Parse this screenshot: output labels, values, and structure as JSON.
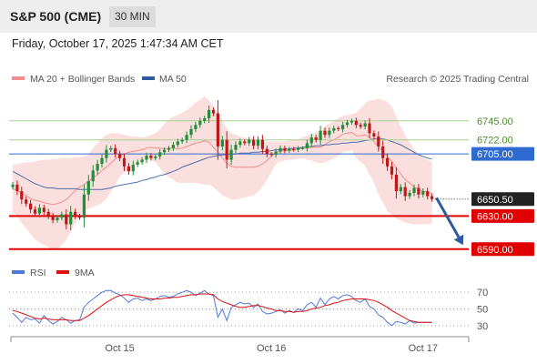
{
  "header": {
    "title": "S&P 500 (CME)",
    "timeframe": "30 MIN"
  },
  "date_label": "Friday, October 17, 2025 1:47:34 AM CET",
  "credit": "Research © 2025 Trading Central",
  "colors": {
    "bollinger": "#f28c8c",
    "ma50": "#2d5aa0",
    "green_level": "#a8d08d",
    "blue_level": "#2f6ad0",
    "red_level": "#e00000",
    "price_tag": "#222222",
    "candle_up": "#1f8f3a",
    "candle_down": "#c01818",
    "rsi": "#4f78d8",
    "rsi_ma": "#e01010",
    "arrow": "#2d5aa0"
  },
  "chart_data": [
    {
      "type": "candlestick",
      "legend": [
        {
          "name": "MA 20 + Bollinger Bands",
          "color": "#f28c8c"
        },
        {
          "name": "MA 50",
          "color": "#2d5aa0"
        }
      ],
      "legend_position": "top-left",
      "x_ticks": [
        {
          "label": "Oct 15",
          "index": 24
        },
        {
          "label": "Oct 16",
          "index": 58
        },
        {
          "label": "Oct 17",
          "index": 92
        }
      ],
      "ylim": [
        6581,
        6781
      ],
      "current_price": {
        "value": 6650.5,
        "label": "6650.50"
      },
      "levels": [
        {
          "value": 6745,
          "label": "6745.00",
          "kind": "resistance-minor"
        },
        {
          "value": 6722,
          "label": "6722.00",
          "kind": "resistance-minor"
        },
        {
          "value": 6705,
          "label": "6705.00",
          "kind": "pivot"
        },
        {
          "value": 6630,
          "label": "6630.00",
          "kind": "support"
        },
        {
          "value": 6590,
          "label": "6590.00",
          "kind": "support"
        }
      ],
      "arrow": {
        "from_index": 95,
        "from_value": 6652,
        "to_index": 101,
        "to_value": 6595
      },
      "closes": [
        6668,
        6660,
        6650,
        6645,
        6638,
        6633,
        6640,
        6635,
        6630,
        6625,
        6628,
        6632,
        6620,
        6635,
        6630,
        6628,
        6656,
        6672,
        6685,
        6693,
        6700,
        6710,
        6712,
        6705,
        6700,
        6690,
        6684,
        6692,
        6695,
        6698,
        6703,
        6700,
        6702,
        6707,
        6710,
        6712,
        6716,
        6720,
        6722,
        6728,
        6735,
        6740,
        6745,
        6748,
        6758,
        6754,
        6714,
        6722,
        6698,
        6710,
        6716,
        6720,
        6718,
        6722,
        6715,
        6722,
        6711,
        6705,
        6704,
        6708,
        6712,
        6709,
        6711,
        6710,
        6712,
        6712,
        6718,
        6725,
        6722,
        6733,
        6728,
        6733,
        6736,
        6735,
        6740,
        6743,
        6745,
        6740,
        6738,
        6742,
        6730,
        6726,
        6714,
        6700,
        6690,
        6680,
        6660,
        6665,
        6654,
        6658,
        6664,
        6656,
        6660,
        6654,
        6650.5
      ],
      "bb_upper": [
        6692,
        6693,
        6694,
        6695,
        6695,
        6696,
        6697,
        6698,
        6698,
        6699,
        6699,
        6700,
        6700,
        6700,
        6701,
        6701,
        6702,
        6705,
        6712,
        6718,
        6724,
        6728,
        6730,
        6730,
        6729,
        6728,
        6727,
        6726,
        6726,
        6725,
        6726,
        6728,
        6730,
        6735,
        6741,
        6747,
        6750,
        6752,
        6755,
        6758,
        6762,
        6767,
        6770,
        6775,
        6770,
        6762,
        6755,
        6745,
        6736,
        6730,
        6728,
        6726,
        6725,
        6724,
        6723,
        6722,
        6721,
        6720,
        6720,
        6720,
        6720,
        6720,
        6721,
        6722,
        6723,
        6725,
        6727,
        6729,
        6731,
        6733,
        6738,
        6742,
        6745,
        6748,
        6751,
        6752,
        6753,
        6755,
        6760,
        6766,
        6770,
        6770,
        6772,
        6770,
        6768,
        6762,
        6750,
        6738,
        6727,
        6719,
        6711,
        6705,
        6700,
        6698,
        6695
      ],
      "bb_lower": [
        6635,
        6630,
        6622,
        6615,
        6608,
        6602,
        6598,
        6595,
        6592,
        6590,
        6590,
        6595,
        6601,
        6611,
        6621,
        6630,
        6635,
        6639,
        6641,
        6643,
        6646,
        6650,
        6659,
        6668,
        6678,
        6682,
        6687,
        6690,
        6693,
        6696,
        6698,
        6698,
        6695,
        6688,
        6681,
        6677,
        6674,
        6670,
        6670,
        6670,
        6670,
        6670,
        6669,
        6668,
        6668,
        6665,
        6660,
        6655,
        6653,
        6650,
        6650,
        6651,
        6652,
        6654,
        6655,
        6659,
        6666,
        6673,
        6683,
        6693,
        6696,
        6697,
        6698,
        6698,
        6699,
        6700,
        6698,
        6697,
        6695,
        6694,
        6695,
        6697,
        6700,
        6703,
        6707,
        6708,
        6709,
        6700,
        6695,
        6691,
        6680,
        6670,
        6656,
        6646,
        6636,
        6631,
        6627,
        6625,
        6622,
        6621,
        6620,
        6620,
        6620,
        6620,
        6620
      ],
      "bb_mid": [
        6663,
        6661,
        6658,
        6655,
        6651,
        6649,
        6648,
        6646,
        6645,
        6644,
        6645,
        6647,
        6650,
        6655,
        6661,
        6665,
        6668,
        6672,
        6676,
        6680,
        6685,
        6689,
        6694,
        6699,
        6703,
        6705,
        6707,
        6708,
        6709,
        6710,
        6712,
        6713,
        6712,
        6712,
        6711,
        6712,
        6712,
        6711,
        6712,
        6714,
        6716,
        6718,
        6719,
        6721,
        6719,
        6713,
        6707,
        6700,
        6694,
        6690,
        6689,
        6689,
        6689,
        6689,
        6689,
        6690,
        6693,
        6697,
        6702,
        6707,
        6708,
        6709,
        6709,
        6710,
        6711,
        6712,
        6712,
        6713,
        6713,
        6713,
        6716,
        6720,
        6722,
        6725,
        6729,
        6730,
        6731,
        6727,
        6727,
        6728,
        6725,
        6720,
        6714,
        6708,
        6702,
        6696,
        6688,
        6681,
        6674,
        6670,
        6665,
        6662,
        6660,
        6659,
        6657
      ],
      "ma50": [
        6684,
        6681,
        6678,
        6675,
        6672,
        6669,
        6667,
        6665,
        6664,
        6664,
        6663,
        6663,
        6663,
        6663,
        6663,
        6662,
        6662,
        6662,
        6662,
        6662,
        6662,
        6663,
        6664,
        6666,
        6667,
        6668,
        6669,
        6670,
        6671,
        6673,
        6674,
        6676,
        6677,
        6679,
        6680,
        6682,
        6684,
        6686,
        6689,
        6691,
        6693,
        6695,
        6697,
        6699,
        6701,
        6702,
        6703,
        6704,
        6704,
        6705,
        6705,
        6706,
        6706,
        6706,
        6707,
        6707,
        6708,
        6708,
        6709,
        6710,
        6710,
        6711,
        6711,
        6712,
        6712,
        6713,
        6714,
        6714,
        6715,
        6715,
        6716,
        6716,
        6717,
        6717,
        6718,
        6718,
        6719,
        6719,
        6720,
        6721,
        6722,
        6723,
        6723,
        6723,
        6722,
        6720,
        6718,
        6716,
        6713,
        6710,
        6707,
        6704,
        6702,
        6700,
        6699
      ]
    },
    {
      "type": "line",
      "legend": [
        {
          "name": "RSI",
          "color": "#4f78d8"
        },
        {
          "name": "9MA",
          "color": "#e01010"
        }
      ],
      "legend_position": "top-left",
      "ylim": [
        20,
        80
      ],
      "y_ticks": [
        {
          "value": 70,
          "label": "70"
        },
        {
          "value": 50,
          "label": "50"
        },
        {
          "value": 30,
          "label": "30"
        }
      ],
      "series": [
        {
          "name": "RSI",
          "values": [
            45,
            40,
            34,
            40,
            37,
            38,
            33,
            42,
            36,
            32,
            35,
            40,
            37,
            33,
            36,
            37,
            52,
            58,
            62,
            66,
            70,
            72,
            72,
            69,
            67,
            63,
            58,
            62,
            63,
            60,
            62,
            60,
            62,
            65,
            66,
            64,
            65,
            68,
            70,
            72,
            70,
            66,
            69,
            72,
            68,
            66,
            40,
            50,
            36,
            52,
            55,
            58,
            56,
            57,
            52,
            56,
            47,
            44,
            45,
            47,
            49,
            45,
            48,
            46,
            50,
            48,
            55,
            58,
            52,
            63,
            55,
            62,
            65,
            62,
            66,
            67,
            65,
            60,
            58,
            62,
            53,
            50,
            43,
            40,
            34,
            30,
            35,
            34,
            32,
            36,
            33,
            34,
            34,
            34,
            34
          ]
        },
        {
          "name": "9MA",
          "values": [
            48,
            47,
            45,
            43,
            41,
            39,
            38,
            39,
            38,
            37,
            37,
            37,
            37,
            36,
            36,
            36,
            39,
            42,
            46,
            50,
            54,
            58,
            61,
            64,
            66,
            67,
            67,
            66,
            65,
            64,
            63,
            62,
            62,
            62,
            63,
            63,
            64,
            64,
            65,
            66,
            67,
            67,
            68,
            68,
            68,
            67,
            62,
            59,
            57,
            55,
            53,
            52,
            52,
            53,
            54,
            54,
            53,
            51,
            50,
            48,
            48,
            47,
            47,
            46,
            47,
            47,
            48,
            50,
            51,
            52,
            54,
            55,
            57,
            58,
            60,
            61,
            62,
            62,
            62,
            62,
            61,
            60,
            58,
            55,
            52,
            48,
            45,
            42,
            39,
            36,
            35,
            34,
            34,
            34,
            34
          ]
        }
      ]
    }
  ]
}
